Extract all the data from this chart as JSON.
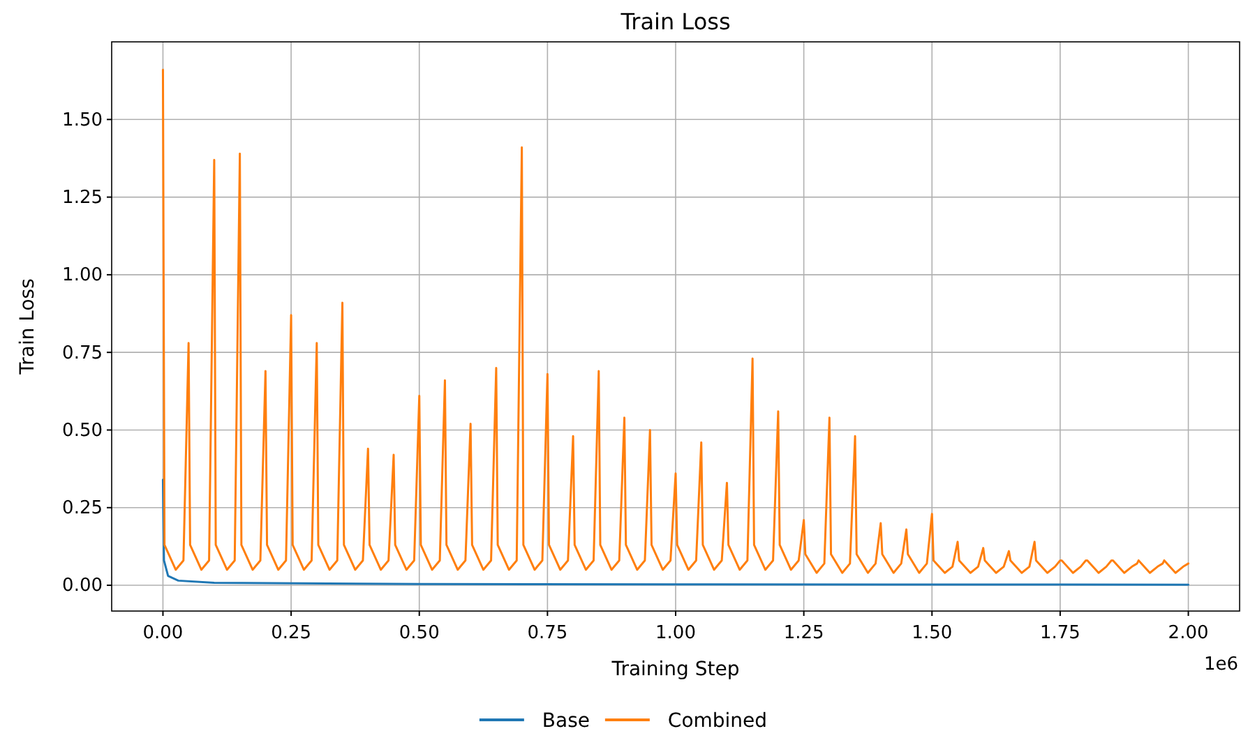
{
  "chart_data": {
    "type": "line",
    "title": "Train Loss",
    "xlabel": "Training Step",
    "ylabel": "Train Loss",
    "annotations": [
      "1e6"
    ],
    "xlim": [
      -0.1,
      2.1
    ],
    "xticks": [
      {
        "value": 0,
        "label": "0.00"
      },
      {
        "value": 0.25,
        "label": "0.25"
      },
      {
        "value": 0.5,
        "label": "0.50"
      },
      {
        "value": 0.75,
        "label": "0.75"
      },
      {
        "value": 1,
        "label": "1.00"
      },
      {
        "value": 1.25,
        "label": "1.25"
      },
      {
        "value": 1.5,
        "label": "1.50"
      },
      {
        "value": 1.75,
        "label": "1.75"
      },
      {
        "value": 2,
        "label": "2.00"
      }
    ],
    "ylim": [
      -0.083,
      1.75
    ],
    "yticks": [
      {
        "value": 0,
        "label": "0.00"
      },
      {
        "value": 0.25,
        "label": "0.25"
      },
      {
        "value": 0.5,
        "label": "0.50"
      },
      {
        "value": 0.75,
        "label": "0.75"
      },
      {
        "value": 1,
        "label": "1.00"
      },
      {
        "value": 1.25,
        "label": "1.25"
      },
      {
        "value": 1.5,
        "label": "1.50"
      }
    ],
    "grid": true,
    "legend": "bottom",
    "marker": "none",
    "line_style": "solid",
    "series": [
      {
        "name": "Base",
        "color": "#1f77b4",
        "x": [
          0,
          0.002,
          0.01,
          0.03,
          0.1,
          0.5,
          1,
          2
        ],
        "values": [
          0.34,
          0.08,
          0.03,
          0.015,
          0.008,
          0.004,
          0.003,
          0.002
        ]
      },
      {
        "name": "Combined",
        "color": "#ff7f0e",
        "x": [
          0,
          0.003,
          0.025,
          0.04,
          0.05,
          0.053,
          0.075,
          0.09,
          0.1,
          0.103,
          0.125,
          0.14,
          0.15,
          0.153,
          0.175,
          0.19,
          0.2,
          0.203,
          0.225,
          0.24,
          0.25,
          0.253,
          0.275,
          0.29,
          0.3,
          0.303,
          0.325,
          0.34,
          0.35,
          0.353,
          0.375,
          0.39,
          0.4,
          0.403,
          0.425,
          0.44,
          0.45,
          0.453,
          0.475,
          0.49,
          0.5,
          0.503,
          0.525,
          0.54,
          0.55,
          0.553,
          0.575,
          0.59,
          0.6,
          0.603,
          0.625,
          0.64,
          0.65,
          0.653,
          0.675,
          0.69,
          0.7,
          0.703,
          0.725,
          0.74,
          0.75,
          0.753,
          0.775,
          0.79,
          0.8,
          0.803,
          0.825,
          0.84,
          0.85,
          0.853,
          0.875,
          0.89,
          0.9,
          0.903,
          0.925,
          0.94,
          0.95,
          0.953,
          0.975,
          0.99,
          1,
          1.003,
          1.025,
          1.04,
          1.05,
          1.053,
          1.075,
          1.09,
          1.1,
          1.103,
          1.125,
          1.14,
          1.15,
          1.153,
          1.175,
          1.19,
          1.2,
          1.203,
          1.225,
          1.24,
          1.25,
          1.253,
          1.275,
          1.29,
          1.3,
          1.303,
          1.325,
          1.34,
          1.35,
          1.353,
          1.375,
          1.39,
          1.4,
          1.403,
          1.425,
          1.44,
          1.45,
          1.453,
          1.475,
          1.49,
          1.5,
          1.503,
          1.525,
          1.54,
          1.55,
          1.553,
          1.575,
          1.59,
          1.6,
          1.603,
          1.625,
          1.64,
          1.65,
          1.653,
          1.675,
          1.69,
          1.7,
          1.703,
          1.725,
          1.74,
          1.75,
          1.753,
          1.775,
          1.79,
          1.8,
          1.803,
          1.825,
          1.84,
          1.85,
          1.853,
          1.875,
          1.89,
          1.9,
          1.903,
          1.925,
          1.94,
          1.95,
          1.953,
          1.975,
          1.99,
          2
        ],
        "values": [
          1.66,
          0.13,
          0.05,
          0.08,
          0.78,
          0.13,
          0.05,
          0.08,
          1.37,
          0.13,
          0.05,
          0.08,
          1.39,
          0.13,
          0.05,
          0.08,
          0.69,
          0.13,
          0.05,
          0.08,
          0.87,
          0.13,
          0.05,
          0.08,
          0.78,
          0.13,
          0.05,
          0.08,
          0.91,
          0.13,
          0.05,
          0.08,
          0.44,
          0.13,
          0.05,
          0.08,
          0.42,
          0.13,
          0.05,
          0.08,
          0.61,
          0.13,
          0.05,
          0.08,
          0.66,
          0.13,
          0.05,
          0.08,
          0.52,
          0.13,
          0.05,
          0.08,
          0.7,
          0.13,
          0.05,
          0.08,
          1.41,
          0.13,
          0.05,
          0.08,
          0.68,
          0.13,
          0.05,
          0.08,
          0.48,
          0.13,
          0.05,
          0.08,
          0.69,
          0.13,
          0.05,
          0.08,
          0.54,
          0.13,
          0.05,
          0.08,
          0.5,
          0.13,
          0.05,
          0.08,
          0.36,
          0.13,
          0.05,
          0.08,
          0.46,
          0.13,
          0.05,
          0.08,
          0.33,
          0.13,
          0.05,
          0.08,
          0.73,
          0.13,
          0.05,
          0.08,
          0.56,
          0.13,
          0.05,
          0.08,
          0.21,
          0.1,
          0.04,
          0.07,
          0.54,
          0.1,
          0.04,
          0.07,
          0.48,
          0.1,
          0.04,
          0.07,
          0.2,
          0.1,
          0.04,
          0.07,
          0.18,
          0.1,
          0.04,
          0.07,
          0.23,
          0.08,
          0.04,
          0.06,
          0.14,
          0.08,
          0.04,
          0.06,
          0.12,
          0.08,
          0.04,
          0.06,
          0.11,
          0.08,
          0.04,
          0.06,
          0.14,
          0.08,
          0.04,
          0.06,
          0.08,
          0.08,
          0.04,
          0.06,
          0.08,
          0.08,
          0.04,
          0.06,
          0.08,
          0.08,
          0.04,
          0.06,
          0.07,
          0.08,
          0.04,
          0.06,
          0.07,
          0.08,
          0.04,
          0.06,
          0.07
        ]
      }
    ]
  }
}
